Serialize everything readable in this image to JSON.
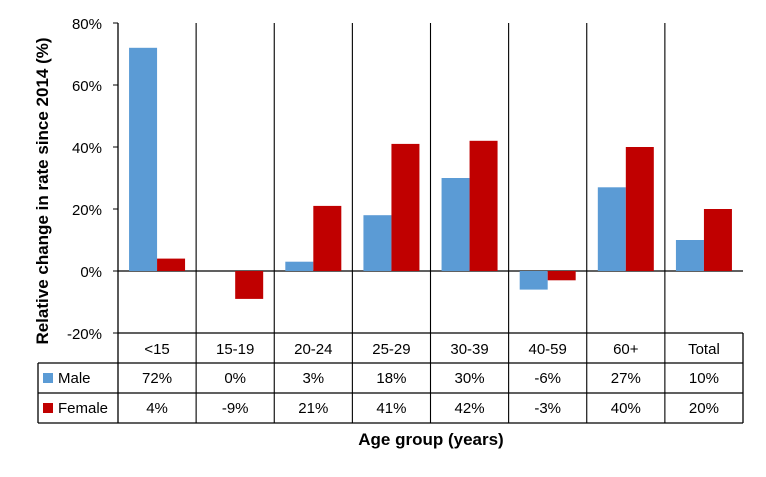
{
  "chart_data": {
    "type": "bar",
    "title": "",
    "ylabel": "Relative change in rate since 2014 (%)",
    "xlabel": "Age group (years)",
    "ylim": [
      -20,
      80
    ],
    "yticks": [
      80,
      60,
      40,
      20,
      0,
      -20
    ],
    "ytick_labels": [
      "80%",
      "60%",
      "40%",
      "20%",
      "0%",
      "-20%"
    ],
    "categories": [
      "<15",
      "15-19",
      "20-24",
      "25-29",
      "30-39",
      "40-59",
      "60+",
      "Total"
    ],
    "series": [
      {
        "name": "Male",
        "color": "#5B9BD5",
        "values": [
          72,
          0,
          3,
          18,
          30,
          -6,
          27,
          10
        ],
        "labels": [
          "72%",
          "0%",
          "3%",
          "18%",
          "30%",
          "-6%",
          "27%",
          "10%"
        ]
      },
      {
        "name": "Female",
        "color": "#C00000",
        "values": [
          4,
          -9,
          21,
          41,
          42,
          -3,
          40,
          20
        ],
        "labels": [
          "4%",
          "-9%",
          "21%",
          "41%",
          "42%",
          "-3%",
          "40%",
          "20%"
        ]
      }
    ],
    "grid": "vertical-category-separators",
    "legend": "data-table"
  }
}
